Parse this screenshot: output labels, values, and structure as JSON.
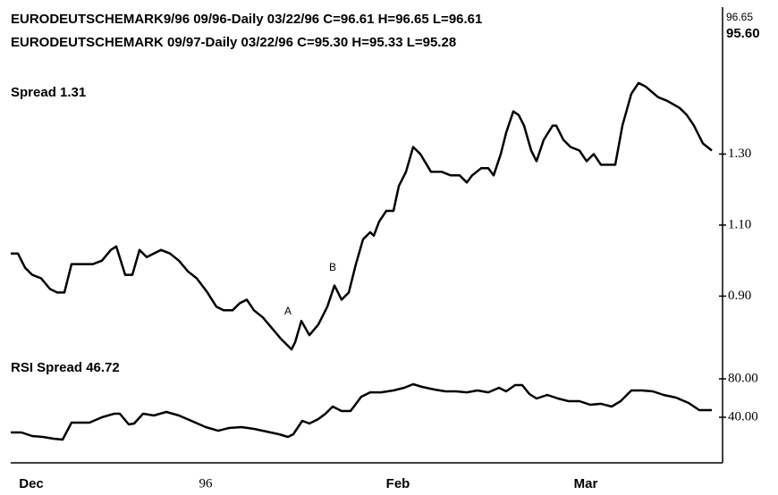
{
  "header": {
    "lines": [
      "EURODEUTSCHEMARK9/96 09/96-Daily 03/22/96 C=96.61 H=96.65 L=96.61",
      "EURODEUTSCHEMARK 09/97-Daily 03/22/96 C=95.30 H=95.33 L=95.28"
    ],
    "right_labels": [
      "96.65",
      "95.60"
    ]
  },
  "chart_data": [
    {
      "type": "line",
      "title": "Spread 1.31",
      "color": "#000000",
      "annotations": [
        "A",
        "B"
      ],
      "x": [
        0,
        8,
        16,
        24,
        34,
        44,
        52,
        60,
        68,
        80,
        92,
        102,
        112,
        118,
        128,
        136,
        144,
        152,
        160,
        168,
        178,
        188,
        198,
        208,
        220,
        230,
        238,
        248,
        256,
        264,
        272,
        282,
        292,
        302,
        314,
        318,
        325,
        334,
        344,
        354,
        362,
        370,
        378,
        386,
        394,
        402,
        406,
        412,
        420,
        428,
        434,
        442,
        450,
        458,
        470,
        482,
        492,
        502,
        510,
        516,
        526,
        534,
        540,
        548,
        554,
        562,
        568,
        574,
        582,
        588,
        596,
        606,
        610,
        618,
        626,
        636,
        644,
        652,
        660,
        668,
        676,
        684,
        694,
        702,
        710,
        724,
        734,
        748,
        756,
        764,
        774,
        784
      ],
      "values": [
        1.02,
        1.02,
        0.98,
        0.96,
        0.95,
        0.92,
        0.91,
        0.91,
        0.99,
        0.99,
        0.99,
        1.0,
        1.03,
        1.04,
        0.96,
        0.96,
        1.03,
        1.01,
        1.02,
        1.03,
        1.02,
        1.0,
        0.97,
        0.95,
        0.91,
        0.87,
        0.86,
        0.86,
        0.88,
        0.89,
        0.86,
        0.84,
        0.81,
        0.78,
        0.75,
        0.77,
        0.83,
        0.79,
        0.82,
        0.87,
        0.93,
        0.89,
        0.91,
        0.99,
        1.06,
        1.08,
        1.07,
        1.11,
        1.14,
        1.14,
        1.21,
        1.25,
        1.32,
        1.3,
        1.25,
        1.25,
        1.24,
        1.24,
        1.22,
        1.24,
        1.26,
        1.26,
        1.24,
        1.3,
        1.36,
        1.42,
        1.41,
        1.38,
        1.31,
        1.28,
        1.34,
        1.38,
        1.38,
        1.34,
        1.32,
        1.31,
        1.28,
        1.3,
        1.27,
        1.27,
        1.27,
        1.38,
        1.47,
        1.5,
        1.49,
        1.46,
        1.45,
        1.43,
        1.41,
        1.38,
        1.33,
        1.31
      ],
      "xlim": [
        0,
        785
      ],
      "ylim": [
        0.74,
        1.52
      ],
      "yticks": [
        {
          "value": 1.3,
          "label": "1.30"
        },
        {
          "value": 1.1,
          "label": "1.10"
        },
        {
          "value": 0.9,
          "label": "0.90"
        }
      ]
    },
    {
      "type": "line",
      "title": "RSI Spread 46.72",
      "color": "#000000",
      "x": [
        0,
        12,
        24,
        36,
        48,
        58,
        68,
        88,
        102,
        116,
        122,
        132,
        138,
        148,
        160,
        174,
        188,
        202,
        218,
        232,
        244,
        258,
        272,
        286,
        300,
        310,
        316,
        326,
        334,
        344,
        352,
        360,
        370,
        380,
        392,
        402,
        414,
        428,
        440,
        450,
        460,
        474,
        486,
        498,
        510,
        522,
        534,
        546,
        554,
        564,
        572,
        580,
        588,
        600,
        612,
        624,
        636,
        648,
        660,
        672,
        682,
        694,
        706,
        718,
        730,
        744,
        758,
        770,
        784
      ],
      "values": [
        24.2,
        24.2,
        20.5,
        19.5,
        17.7,
        16.7,
        34.4,
        34.4,
        40.0,
        43.7,
        43.7,
        32.6,
        33.5,
        43.7,
        41.9,
        45.6,
        41.9,
        36.3,
        29.8,
        26.0,
        28.8,
        29.8,
        27.9,
        25.1,
        22.3,
        19.5,
        22.3,
        36.3,
        33.5,
        38.1,
        43.7,
        51.2,
        46.5,
        46.5,
        61.4,
        66.0,
        66.0,
        67.9,
        70.7,
        74.4,
        71.6,
        68.8,
        67.0,
        67.0,
        66.0,
        67.9,
        66.0,
        70.7,
        67.0,
        73.5,
        73.5,
        64.2,
        59.5,
        63.3,
        59.5,
        56.7,
        56.7,
        53.0,
        54.0,
        51.2,
        56.7,
        67.9,
        67.9,
        67.0,
        63.3,
        60.5,
        54.9,
        47.4,
        47.4
      ],
      "xlim": [
        0,
        785
      ],
      "ylim": [
        0,
        100
      ],
      "yticks": [
        {
          "value": 80,
          "label": "80.00"
        },
        {
          "value": 40,
          "label": "40.00"
        }
      ],
      "xticks": [
        {
          "value": 23,
          "label": "Dec"
        },
        {
          "value": 218,
          "label": "96"
        },
        {
          "value": 433,
          "label": "Feb"
        },
        {
          "value": 643,
          "label": "Mar"
        }
      ]
    }
  ]
}
